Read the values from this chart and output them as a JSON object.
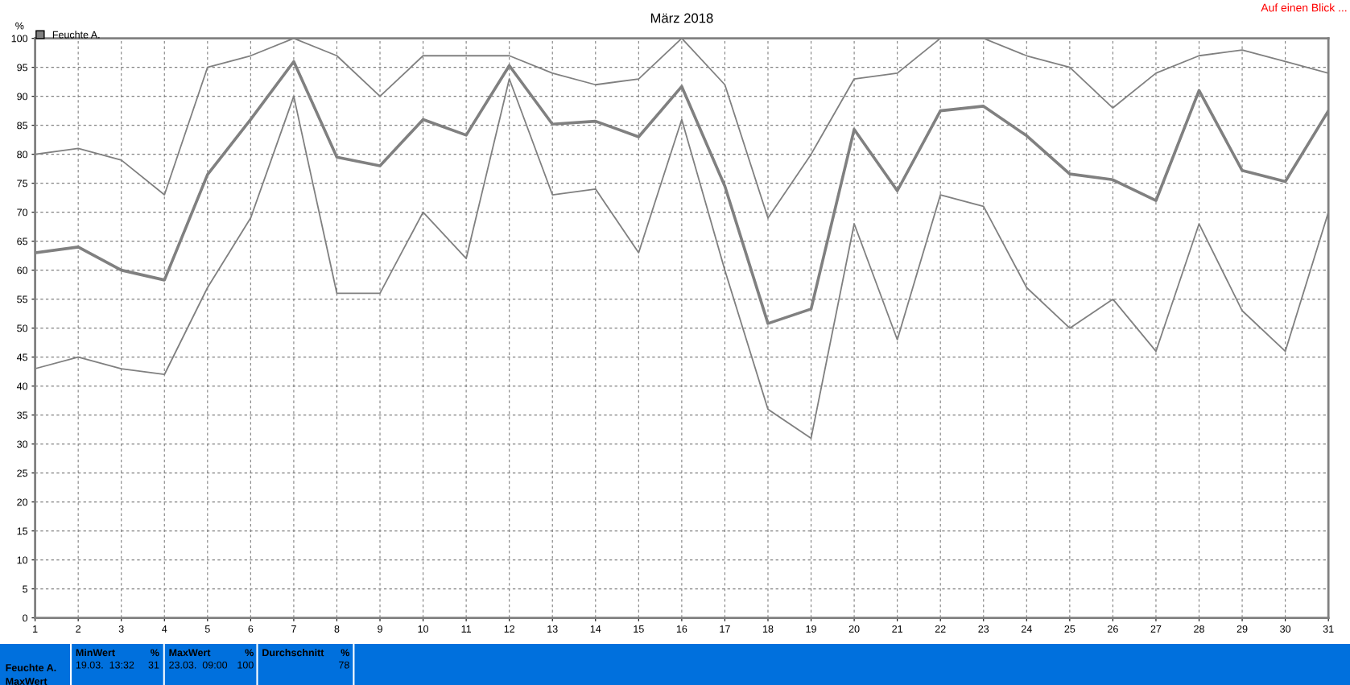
{
  "chart_data": {
    "type": "line",
    "title": "März 2018",
    "ylabel": "%",
    "x": [
      1,
      2,
      3,
      4,
      5,
      6,
      7,
      8,
      9,
      10,
      11,
      12,
      13,
      14,
      15,
      16,
      17,
      18,
      19,
      20,
      21,
      22,
      23,
      24,
      25,
      26,
      27,
      28,
      29,
      30,
      31
    ],
    "series": [
      {
        "color": "#808080",
        "values": [
          80,
          81,
          79,
          73,
          95,
          97,
          100,
          97,
          90,
          97,
          97,
          97,
          94,
          92,
          93,
          100,
          92,
          69,
          80,
          93,
          94,
          100,
          100,
          97,
          95,
          88,
          94,
          97,
          98,
          96,
          94
        ]
      },
      {
        "name": "Feuchte A.",
        "color": "#808080",
        "values": [
          63,
          64,
          60,
          58.3,
          76.5,
          86,
          96,
          79.5,
          78,
          86,
          83.3,
          95.3,
          85.2,
          85.7,
          83,
          91.7,
          74.5,
          50.8,
          53.3,
          84.3,
          73.7,
          87.5,
          88.3,
          83.2,
          76.6,
          75.6,
          72,
          91,
          77.2,
          75.3,
          87.5
        ]
      },
      {
        "color": "#808080",
        "values": [
          43,
          45,
          43,
          42,
          57,
          69,
          90,
          56,
          56,
          70,
          62,
          93,
          73,
          74,
          63,
          86,
          60,
          36,
          31,
          68,
          48,
          73,
          71,
          57,
          50,
          55,
          46,
          68,
          53,
          46,
          70
        ]
      }
    ],
    "xlim": [
      1,
      31
    ],
    "xticks": [
      1,
      2,
      3,
      4,
      5,
      6,
      7,
      8,
      9,
      10,
      11,
      12,
      13,
      14,
      15,
      16,
      17,
      18,
      19,
      20,
      21,
      22,
      23,
      24,
      25,
      26,
      27,
      28,
      29,
      30,
      31
    ],
    "ylim": [
      0,
      100
    ],
    "yticks": [
      0,
      5,
      10,
      15,
      20,
      25,
      30,
      35,
      40,
      45,
      50,
      55,
      60,
      65,
      70,
      75,
      80,
      85,
      90,
      95,
      100
    ],
    "grid": true,
    "legend": "top left",
    "marker": "none",
    "line_style": "solid",
    "annotations": [
      "Auf einen Blick ...",
      "Feuchte A.",
      "MaxWert",
      "MinWert",
      "%",
      "19.03.  13:32",
      "31",
      "MaxWert",
      "%",
      "23.03.  09:00",
      "100",
      "Durchschnitt",
      "%",
      "78"
    ]
  }
}
